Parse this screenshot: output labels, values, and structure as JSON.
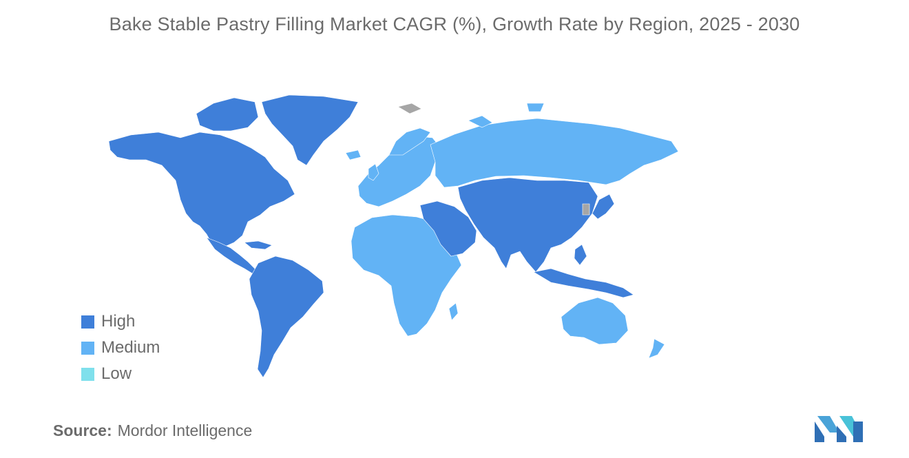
{
  "title": "Bake Stable Pastry Filling Market CAGR (%), Growth Rate by Region, 2025 - 2030",
  "legend": [
    {
      "label": "High",
      "color": "#3f7fd9"
    },
    {
      "label": "Medium",
      "color": "#62b3f5"
    },
    {
      "label": "Low",
      "color": "#7fe0ec"
    }
  ],
  "source": {
    "label": "Source:",
    "value": "Mordor Intelligence"
  },
  "colors": {
    "high": "#3f7fd9",
    "medium": "#62b3f5",
    "nodata": "#a6a6a6"
  },
  "logo": {
    "icon": "mordor-intelligence-logo-icon"
  }
}
